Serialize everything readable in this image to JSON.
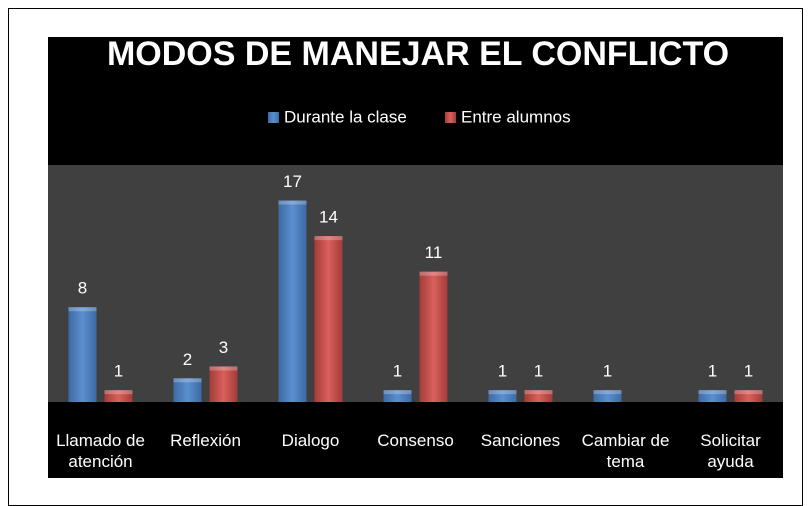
{
  "chart_data": {
    "type": "bar",
    "title": "MODOS DE MANEJAR EL CONFLICTO",
    "categories": [
      "Llamado de atención",
      "Reflexión",
      "Dialogo",
      "Consenso",
      "Sanciones",
      "Cambiar de tema",
      "Solicitar ayuda"
    ],
    "series": [
      {
        "name": "Durante la clase",
        "color": "#4f81bd",
        "values": [
          8,
          2,
          17,
          1,
          1,
          1,
          1
        ]
      },
      {
        "name": "Entre alumnos",
        "color": "#c0504d",
        "values": [
          1,
          3,
          14,
          11,
          1,
          null,
          1
        ]
      }
    ],
    "ylim": [
      0,
      20
    ],
    "legend": "top"
  }
}
